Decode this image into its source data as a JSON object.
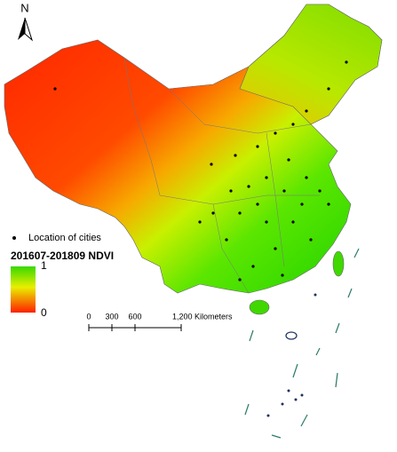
{
  "north_arrow": {
    "label": "N"
  },
  "legend": {
    "cities_label": "Location of cities",
    "title": "201607-201809 NDVI",
    "max_label": "1",
    "min_label": "0"
  },
  "scale_bar": {
    "ticks": [
      0,
      300,
      600,
      {
        "value": 1200,
        "label": "1,200 Kilometers"
      }
    ]
  }
}
